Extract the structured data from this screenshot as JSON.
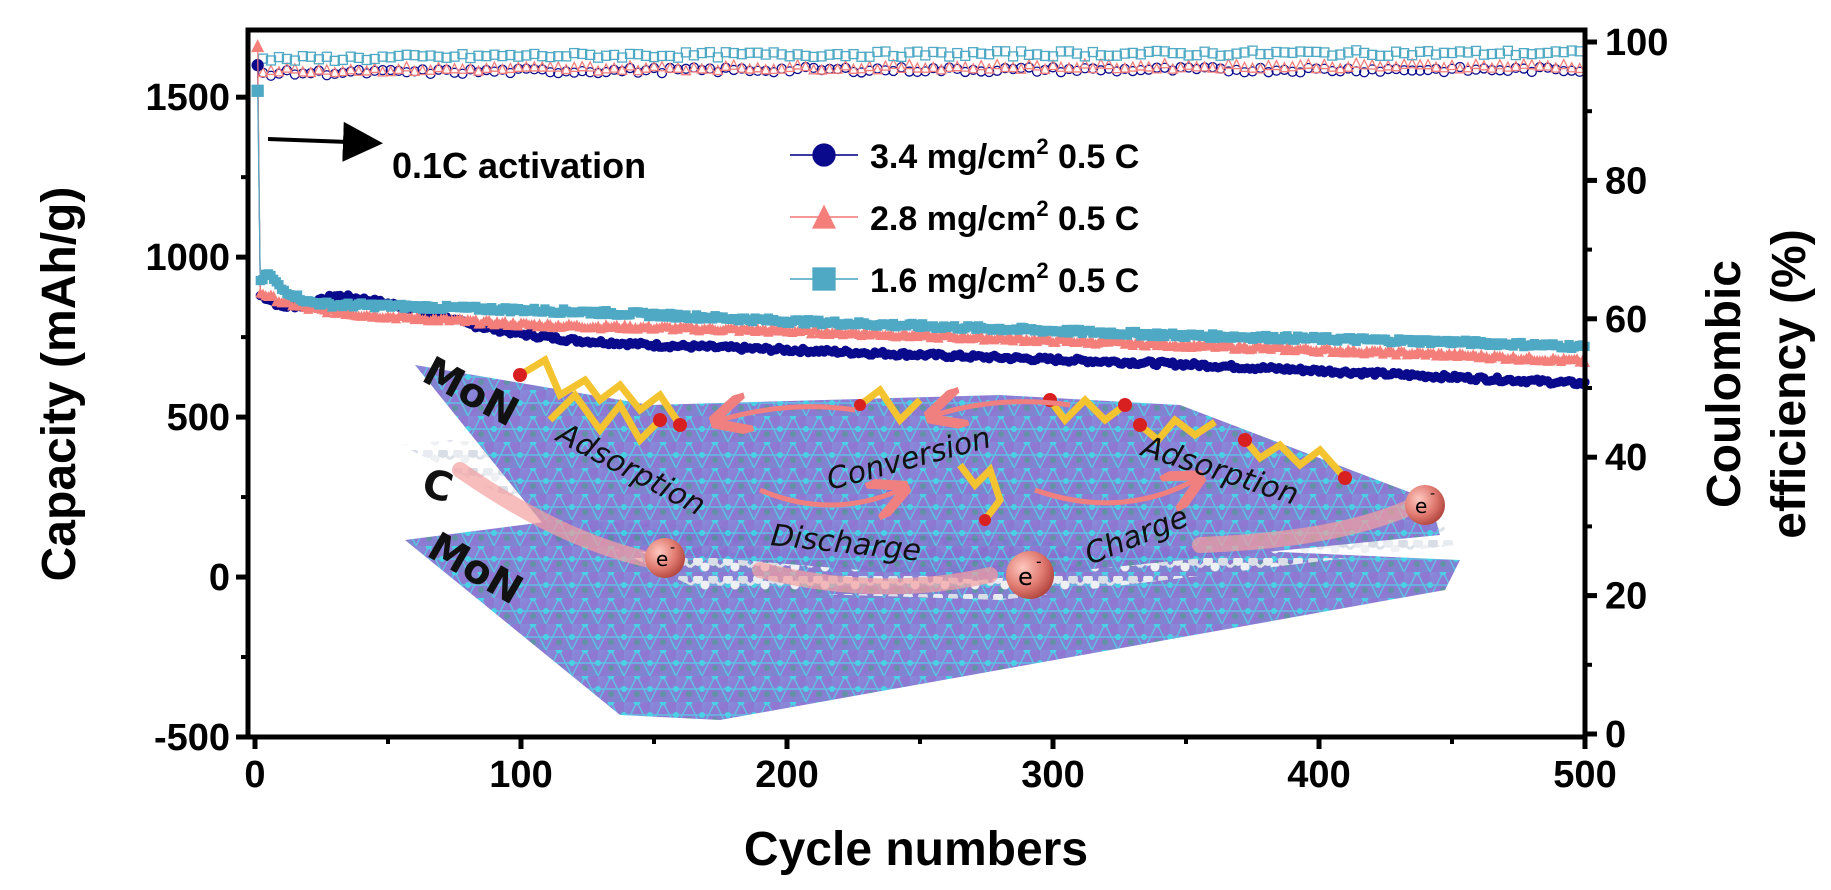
{
  "chart_data": {
    "type": "scatter",
    "title": "",
    "xlabel": "Cycle numbers",
    "ylabel": "Capacity (mAh/g)",
    "y2label_line1": "Coulombic",
    "y2label_line2": "efficiency (%)",
    "xlim": [
      0,
      500
    ],
    "ylim": [
      -500,
      1710
    ],
    "y2lim": [
      0,
      100
    ],
    "x_ticks": [
      0,
      100,
      200,
      300,
      400,
      500
    ],
    "y_ticks": [
      -500,
      0,
      500,
      1000,
      1500
    ],
    "y2_ticks": [
      0,
      20,
      40,
      60,
      80,
      100
    ],
    "grid": false,
    "legend_position": "top-center",
    "legend": [
      {
        "label": "3.4 mg/cm",
        "sup": "2",
        "suffix": " 0.5 C",
        "marker": "circle",
        "color": "#0a0a8c"
      },
      {
        "label": "2.8 mg/cm",
        "sup": "2",
        "suffix": " 0.5 C",
        "marker": "triangle",
        "color": "#f47f7a"
      },
      {
        "label": "1.6 mg/cm",
        "sup": "2",
        "suffix": " 0.5 C",
        "marker": "square",
        "color": "#4fa9c4"
      }
    ],
    "annotation": "0.1C activation",
    "series": [
      {
        "name": "3.4 mg/cm2 0.5 C capacity",
        "axis": "left",
        "color": "#0a0a8c",
        "x": [
          1,
          2,
          5,
          10,
          20,
          30,
          40,
          60,
          80,
          100,
          120,
          150,
          200,
          250,
          300,
          350,
          400,
          450,
          500
        ],
        "y": [
          1600,
          880,
          870,
          845,
          850,
          880,
          870,
          840,
          790,
          760,
          740,
          725,
          710,
          695,
          680,
          665,
          645,
          625,
          605
        ]
      },
      {
        "name": "2.8 mg/cm2 0.5 C capacity",
        "axis": "left",
        "color": "#f47f7a",
        "x": [
          1,
          2,
          5,
          10,
          20,
          30,
          40,
          60,
          80,
          100,
          120,
          150,
          200,
          250,
          300,
          350,
          400,
          450,
          500
        ],
        "y": [
          1660,
          890,
          880,
          860,
          840,
          830,
          820,
          810,
          800,
          790,
          785,
          780,
          770,
          755,
          740,
          725,
          710,
          695,
          675
        ]
      },
      {
        "name": "1.6 mg/cm2 0.5 C capacity",
        "axis": "left",
        "color": "#4fa9c4",
        "x": [
          1,
          2,
          5,
          10,
          20,
          30,
          40,
          60,
          80,
          100,
          120,
          150,
          200,
          250,
          300,
          350,
          400,
          450,
          500
        ],
        "y": [
          1520,
          920,
          950,
          900,
          860,
          850,
          850,
          845,
          840,
          835,
          830,
          820,
          800,
          785,
          770,
          755,
          745,
          735,
          720
        ]
      },
      {
        "name": "3.4 mg/cm2 0.5 C CE",
        "axis": "right",
        "color": "#0a0a8c",
        "x": [
          5,
          100,
          200,
          300,
          400,
          500
        ],
        "y": [
          95.5,
          95.8,
          96,
          96,
          96,
          96
        ]
      },
      {
        "name": "2.8 mg/cm2 0.5 C CE",
        "axis": "right",
        "color": "#f47f7a",
        "x": [
          5,
          100,
          200,
          300,
          400,
          500
        ],
        "y": [
          96,
          96.2,
          96.4,
          96.5,
          96.6,
          96.6
        ]
      },
      {
        "name": "1.6 mg/cm2 0.5 C CE",
        "axis": "right",
        "color": "#4fa9c4",
        "x": [
          5,
          100,
          200,
          300,
          400,
          500
        ],
        "y": [
          97.5,
          98,
          98.2,
          98.3,
          98.4,
          98.4
        ]
      }
    ]
  },
  "illustration": {
    "labels": {
      "top_layer": "MoN",
      "middle_layer": "C",
      "bottom_layer": "MoN",
      "adsorption_left": "Adsorption",
      "conversion": "Conversion",
      "adsorption_right": "Adsorption",
      "discharge": "Discharge",
      "charge": "Charge",
      "electron": "e",
      "electron_sup": "-"
    }
  }
}
